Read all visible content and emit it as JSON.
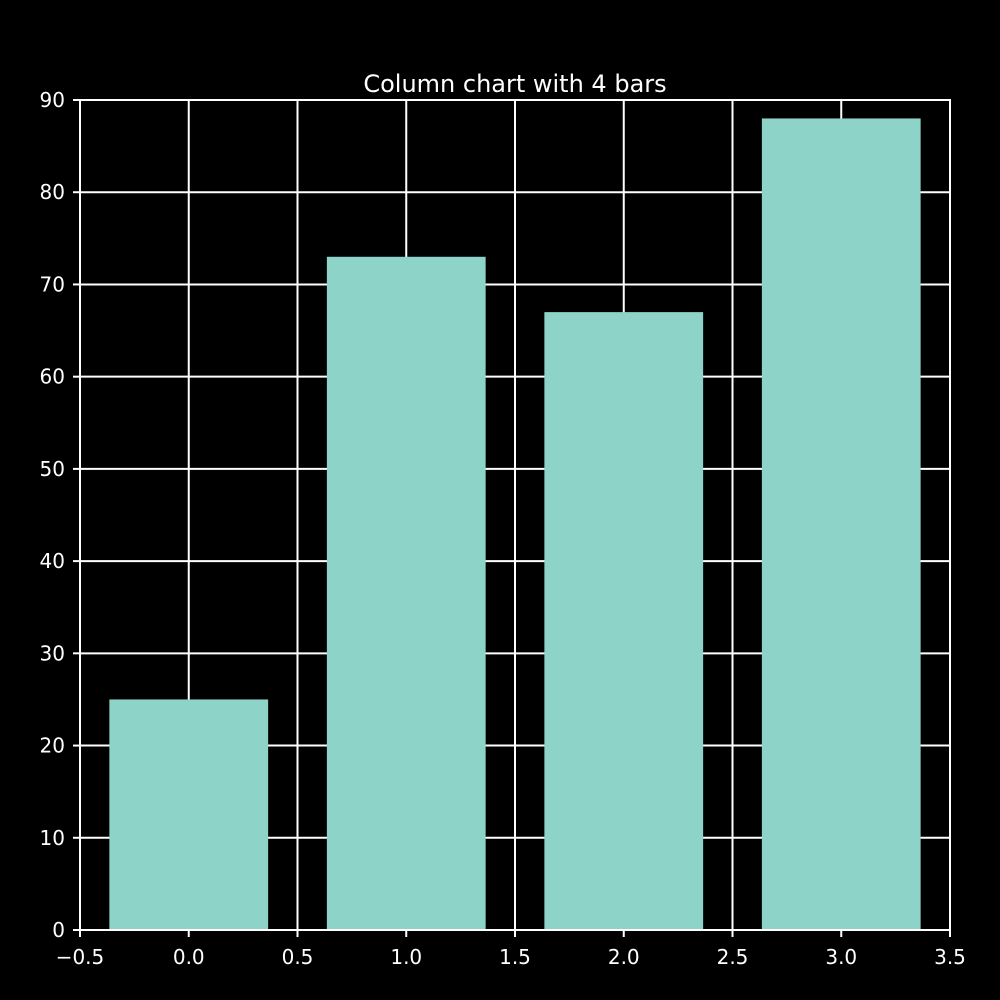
{
  "chart_data": {
    "type": "bar",
    "title": "Column chart with 4 bars",
    "xlabel": "",
    "ylabel": "",
    "x": [
      0,
      1,
      2,
      3
    ],
    "values": [
      25,
      73,
      67,
      88
    ],
    "bar_width": 0.73,
    "xlim": [
      -0.5,
      3.5
    ],
    "ylim": [
      0,
      90
    ],
    "x_ticks": [
      -0.5,
      0.0,
      0.5,
      1.0,
      1.5,
      2.0,
      2.5,
      3.0,
      3.5
    ],
    "x_tick_labels": [
      "−0.5",
      "0.0",
      "0.5",
      "1.0",
      "1.5",
      "2.0",
      "2.5",
      "3.0",
      "3.5"
    ],
    "y_ticks": [
      0,
      10,
      20,
      30,
      40,
      50,
      60,
      70,
      80,
      90
    ],
    "y_tick_labels": [
      "0",
      "10",
      "20",
      "30",
      "40",
      "50",
      "60",
      "70",
      "80",
      "90"
    ],
    "grid": true,
    "colors": {
      "background": "#000000",
      "bar": "#8dd3c7",
      "grid": "#ffffff",
      "text": "#ffffff"
    }
  }
}
